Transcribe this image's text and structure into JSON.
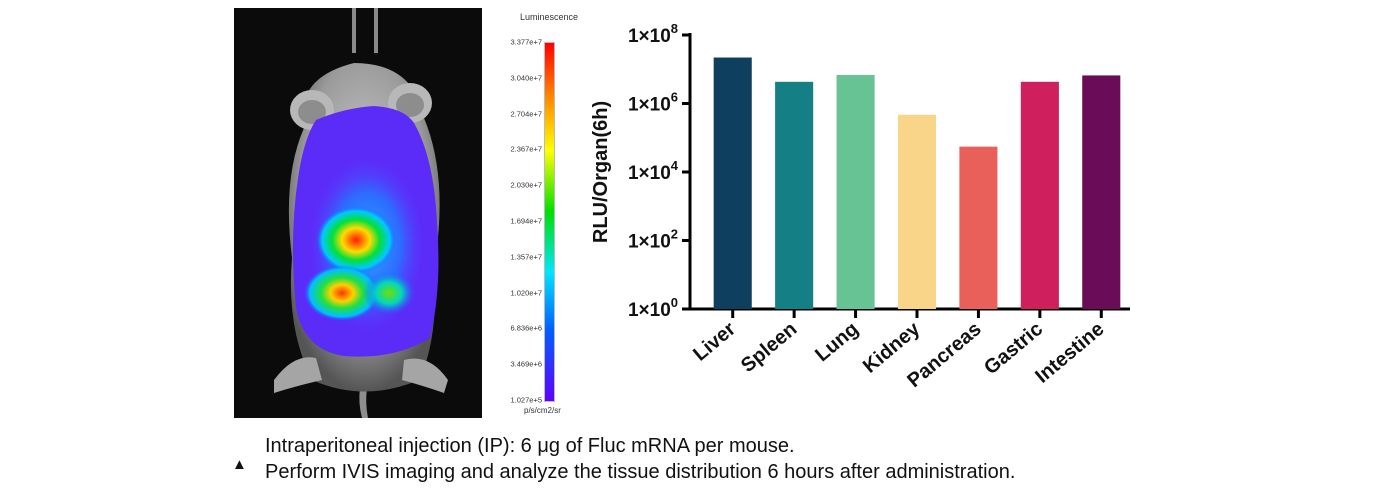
{
  "colorbar": {
    "title": "Luminescence",
    "ticks": [
      "3.377e+7",
      "3.040e+7",
      "2.704e+7",
      "2.367e+7",
      "2.030e+7",
      "1.694e+7",
      "1.357e+7",
      "1.020e+7",
      "6.836e+6",
      "3.469e+6",
      "1.027e+5"
    ],
    "unit": "p/s/cm2/sr"
  },
  "chart_data": {
    "type": "bar",
    "categories": [
      "Liver",
      "Spleen",
      "Lung",
      "Kidney",
      "Pancreas",
      "Gastric",
      "Intestine"
    ],
    "values": [
      22000000,
      4300000,
      6800000,
      470000,
      55000,
      4300000,
      6600000
    ],
    "colors": [
      "#0e3f5e",
      "#157f86",
      "#68c394",
      "#f9d58a",
      "#e9605a",
      "#cf1f5d",
      "#6a0c58"
    ],
    "ylabel": "RLU/Organ(6h)",
    "yscale": "log",
    "ylim": [
      1,
      100000000
    ],
    "yticks": [
      {
        "value": 1,
        "base": "1×10",
        "exp": "0"
      },
      {
        "value": 100,
        "base": "1×10",
        "exp": "2"
      },
      {
        "value": 10000,
        "base": "1×10",
        "exp": "4"
      },
      {
        "value": 1000000,
        "base": "1×10",
        "exp": "6"
      },
      {
        "value": 100000000,
        "base": "1×10",
        "exp": "8"
      }
    ],
    "grid": false,
    "legend": "none"
  },
  "caption": {
    "marker": "▲",
    "line1": "Intraperitoneal injection (IP): 6 μg of Fluc mRNA per mouse.",
    "line2": "Perform IVIS imaging and analyze the tissue distribution 6 hours after administration."
  }
}
